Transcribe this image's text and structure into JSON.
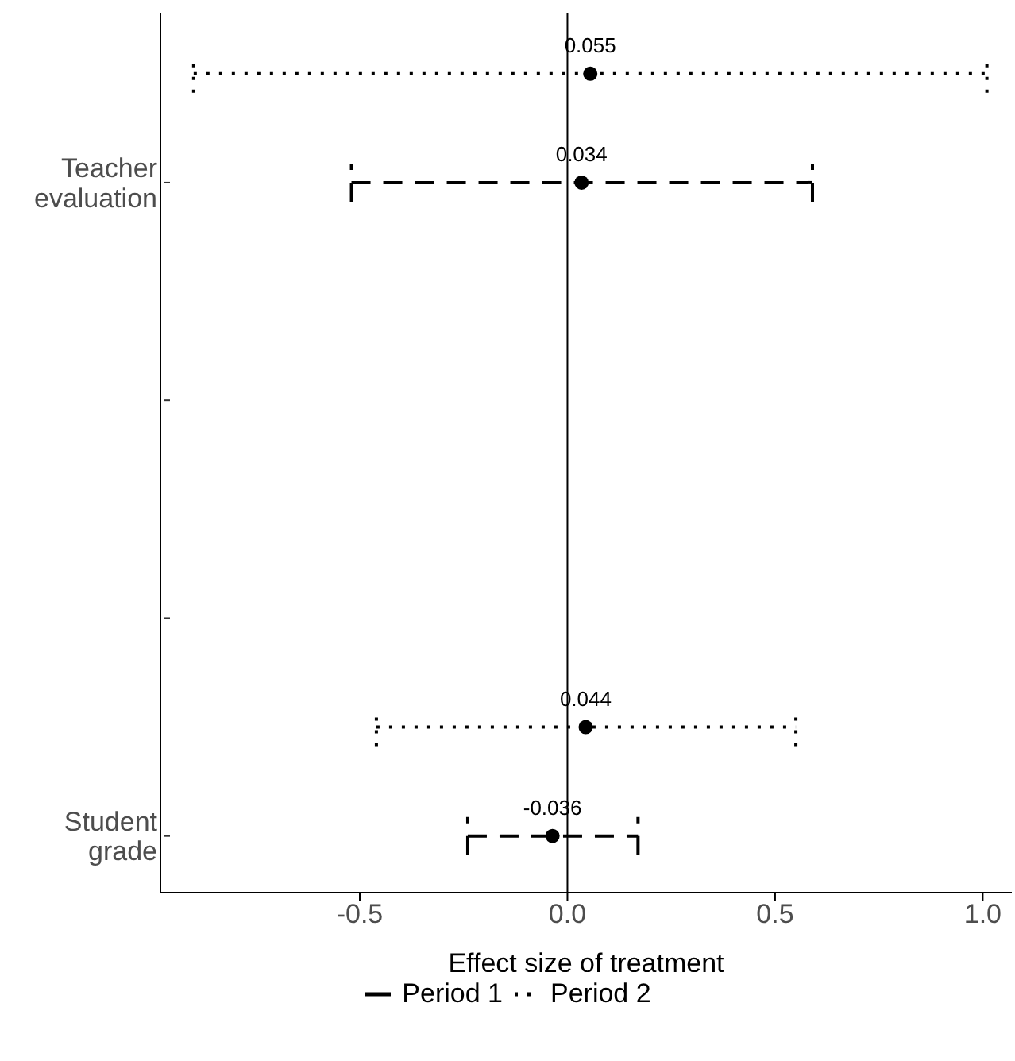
{
  "chart_data": {
    "type": "scatter",
    "orientation": "horizontal",
    "xlabel": "Effect size of treatment",
    "categories": [
      null,
      "Teacher evaluation",
      null,
      null,
      null,
      null,
      null,
      "Student grade"
    ],
    "series": [
      {
        "name": "Period 1",
        "color": "#000000",
        "line_style": "dashed",
        "values": [
          null,
          0.034,
          null,
          null,
          null,
          null,
          null,
          -0.036
        ],
        "errors": [
          null,
          [
            -0.52,
            0.59
          ],
          null,
          null,
          null,
          null,
          null,
          [
            -0.24,
            0.17
          ]
        ]
      },
      {
        "name": "Period 2",
        "color": "#000000",
        "line_style": "dotted",
        "values": [
          0.055,
          null,
          null,
          null,
          null,
          null,
          0.044,
          null
        ],
        "errors": [
          [
            -0.9,
            1.01
          ],
          null,
          null,
          null,
          null,
          null,
          [
            -0.46,
            0.55
          ],
          null
        ]
      }
    ],
    "xlim": [
      -0.98,
      1.07
    ],
    "xticks": [
      -0.5,
      {
        "value": 0,
        "label": "0.0"
      },
      0.5,
      {
        "value": 1,
        "label": "1.0"
      }
    ],
    "ref_lines": [
      {
        "axis": "x",
        "value": 0,
        "color": "#000000",
        "line_style": "solid"
      }
    ],
    "marker": "circle",
    "data_labels": true,
    "grid": false,
    "legend": "bottom"
  }
}
